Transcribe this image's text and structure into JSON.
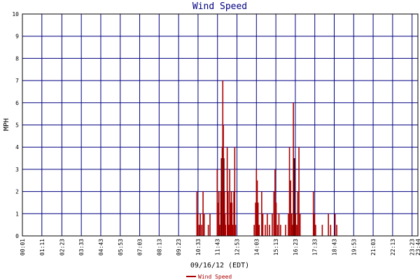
{
  "chart_data": {
    "type": "bar",
    "title": "Wind Speed",
    "xlabel": "09/16/12 (EDT)",
    "ylabel": "MPH",
    "ylim": [
      0,
      10
    ],
    "y_ticks": [
      "0",
      "1",
      "2",
      "3",
      "4",
      "5",
      "6",
      "7",
      "8",
      "9",
      "10"
    ],
    "x_ticks": [
      "00:01",
      "01:11",
      "02:23",
      "03:33",
      "04:43",
      "05:53",
      "07:03",
      "08:13",
      "09:23",
      "10:33",
      "11:43",
      "12:53",
      "14:03",
      "15:13",
      "16:23",
      "17:33",
      "18:43",
      "19:53",
      "21:03",
      "22:13",
      "23:23",
      "23:44"
    ],
    "grid": true,
    "legend": {
      "position": "bottom-center"
    },
    "colors": {
      "series": "#aa0000",
      "grid": "#000080",
      "axis": "#000000",
      "dark_bar": "#660000"
    },
    "series": [
      {
        "name": "Wind Speed",
        "points": [
          {
            "t": "10:29",
            "v": 2.0
          },
          {
            "t": "10:32",
            "v": 1.0
          },
          {
            "t": "10:37",
            "v": 0.5
          },
          {
            "t": "10:41",
            "v": 1.0
          },
          {
            "t": "10:46",
            "v": 0.5
          },
          {
            "t": "10:51",
            "v": 2.0
          },
          {
            "t": "10:55",
            "v": 1.0
          },
          {
            "t": "11:10",
            "v": 0.5
          },
          {
            "t": "11:16",
            "v": 1.0
          },
          {
            "t": "11:42",
            "v": 3.0
          },
          {
            "t": "11:46",
            "v": 1.5
          },
          {
            "t": "11:48",
            "v": 2.0
          },
          {
            "t": "11:51",
            "v": 0.5
          },
          {
            "t": "11:55",
            "v": 2.0
          },
          {
            "t": "11:57",
            "v": 3.5
          },
          {
            "t": "12:00",
            "v": 4.0
          },
          {
            "t": "12:02",
            "v": 7.0
          },
          {
            "t": "12:04",
            "v": 5.0
          },
          {
            "t": "12:06",
            "v": 3.5
          },
          {
            "t": "12:08",
            "v": 2.0
          },
          {
            "t": "12:10",
            "v": 1.0
          },
          {
            "t": "12:12",
            "v": 0.5
          },
          {
            "t": "12:18",
            "v": 4.0
          },
          {
            "t": "12:21",
            "v": 2.0
          },
          {
            "t": "12:24",
            "v": 0.5
          },
          {
            "t": "12:27",
            "v": 3.0
          },
          {
            "t": "12:30",
            "v": 1.5
          },
          {
            "t": "12:33",
            "v": 2.0
          },
          {
            "t": "12:35",
            "v": 1.5
          },
          {
            "t": "12:38",
            "v": 0.5
          },
          {
            "t": "12:42",
            "v": 2.0
          },
          {
            "t": "12:45",
            "v": 4.0
          },
          {
            "t": "12:48",
            "v": 0.5
          },
          {
            "t": "13:55",
            "v": 0.5
          },
          {
            "t": "14:00",
            "v": 1.5
          },
          {
            "t": "14:03",
            "v": 3.0
          },
          {
            "t": "14:06",
            "v": 2.5
          },
          {
            "t": "14:09",
            "v": 1.5
          },
          {
            "t": "14:13",
            "v": 0.5
          },
          {
            "t": "14:22",
            "v": 2.0
          },
          {
            "t": "14:26",
            "v": 1.0
          },
          {
            "t": "14:35",
            "v": 0.5
          },
          {
            "t": "14:42",
            "v": 1.0
          },
          {
            "t": "14:50",
            "v": 0.5
          },
          {
            "t": "15:00",
            "v": 1.0
          },
          {
            "t": "15:06",
            "v": 2.0
          },
          {
            "t": "15:10",
            "v": 3.0
          },
          {
            "t": "15:14",
            "v": 1.5
          },
          {
            "t": "15:19",
            "v": 0.5
          },
          {
            "t": "15:24",
            "v": 1.0
          },
          {
            "t": "15:30",
            "v": 0.5
          },
          {
            "t": "15:48",
            "v": 0.5
          },
          {
            "t": "15:58",
            "v": 1.0
          },
          {
            "t": "16:02",
            "v": 4.0
          },
          {
            "t": "16:06",
            "v": 2.5
          },
          {
            "t": "16:10",
            "v": 1.0
          },
          {
            "t": "16:13",
            "v": 0.5
          },
          {
            "t": "16:16",
            "v": 6.0
          },
          {
            "t": "16:18",
            "v": 3.5
          },
          {
            "t": "16:20",
            "v": 3.5
          },
          {
            "t": "16:24",
            "v": 1.0
          },
          {
            "t": "16:28",
            "v": 0.5
          },
          {
            "t": "16:32",
            "v": 2.0
          },
          {
            "t": "16:36",
            "v": 4.0
          },
          {
            "t": "16:40",
            "v": 1.0
          },
          {
            "t": "17:28",
            "v": 2.0
          },
          {
            "t": "17:32",
            "v": 1.0
          },
          {
            "t": "17:36",
            "v": 0.5
          },
          {
            "t": "18:00",
            "v": 0.5
          },
          {
            "t": "18:22",
            "v": 1.0
          },
          {
            "t": "18:30",
            "v": 0.5
          },
          {
            "t": "18:46",
            "v": 1.0
          },
          {
            "t": "18:52",
            "v": 0.5
          }
        ]
      }
    ]
  }
}
